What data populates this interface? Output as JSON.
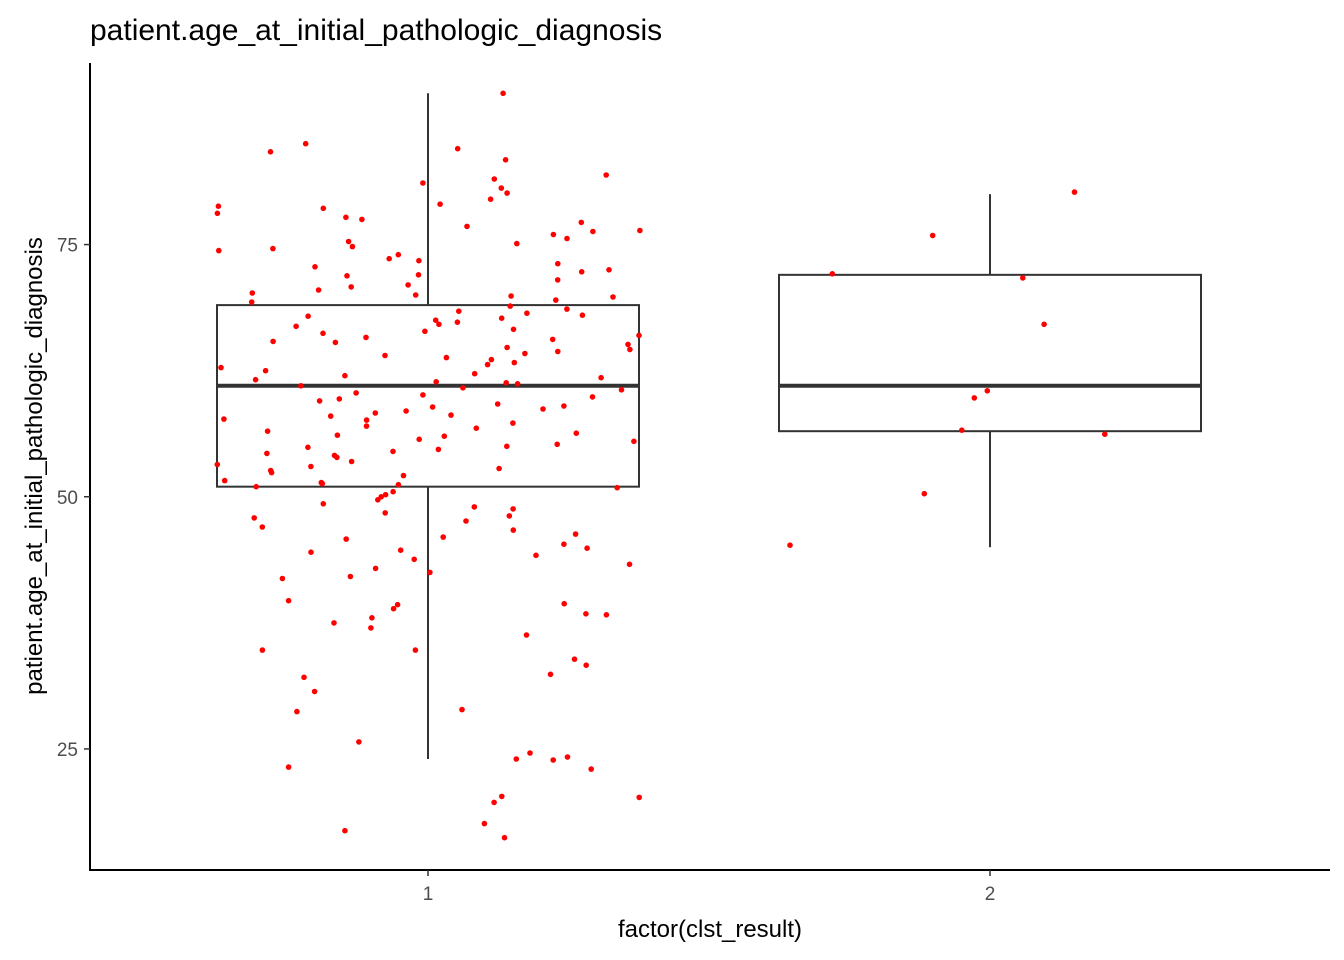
{
  "chart_data": {
    "type": "boxplot",
    "title": "patient.age_at_initial_pathologic_diagnosis",
    "xlabel": "factor(clst_result)",
    "ylabel": "patient.age_at_initial_pathologic_diagnosis",
    "categories": [
      "1",
      "2"
    ],
    "y_ticks": [
      25,
      50,
      75
    ],
    "ylim": [
      13,
      93
    ],
    "grid": false,
    "point_color": "#ff0000",
    "box_color": "#333333",
    "boxes": [
      {
        "category": "1",
        "whisker_low": 24,
        "q1": 51,
        "median": 61,
        "q3": 69,
        "whisker_high": 90
      },
      {
        "category": "2",
        "whisker_low": 45,
        "q1": 56.5,
        "median": 61,
        "q3": 72,
        "whisker_high": 80
      }
    ],
    "points": [
      {
        "category": "1",
        "values": [
          19.7,
          16.9,
          17.6,
          20.2,
          16.2,
          20.3,
          23.2,
          23.0,
          24.0,
          24.2,
          24.6,
          25.7,
          23.9,
          28.7,
          28.9,
          30.7,
          32.1,
          32.4,
          33.3,
          33.9,
          34.8,
          34.8,
          36.3,
          37.0,
          37.5,
          38.0,
          38.3,
          38.4,
          38.9,
          39.3,
          39.4,
          39.7,
          41.9,
          42.1,
          42.9,
          42.5,
          43.3,
          43.8,
          44.2,
          44.5,
          44.7,
          44.9,
          45.3,
          45.8,
          46.0,
          46.3,
          46.7,
          47.0,
          47.6,
          47.9,
          48.1,
          48.4,
          48.8,
          49.3,
          49.7,
          50.2,
          50.5,
          50.9,
          51.2,
          51.6,
          51.3,
          52.4,
          52.8,
          53.2,
          53.9,
          54.1,
          54.5,
          54.9,
          55.2,
          55.7,
          56.0,
          56.3,
          56.8,
          57.3,
          57.7,
          58.1,
          58.5,
          58.9,
          59.2,
          59.7,
          60.1,
          60.6,
          61.0,
          61.4,
          61.8,
          62.2,
          62.8,
          63.1,
          63.6,
          64.0,
          64.4,
          64.8,
          65.3,
          65.6,
          66.0,
          66.4,
          66.9,
          67.3,
          67.7,
          68.0,
          68.4,
          68.9,
          69.3,
          69.8,
          70.2,
          70.5,
          71.0,
          71.5,
          71.9,
          72.3,
          72.8,
          73.1,
          73.6,
          74.0,
          74.4,
          74.8,
          75.1,
          75.6,
          76.0,
          76.4,
          76.8,
          77.2,
          77.7,
          78.1,
          78.6,
          79.0,
          79.5,
          80.1,
          80.6,
          81.1,
          81.5,
          81.9,
          83.4,
          84.2,
          84.5,
          85.0,
          90.0,
          52.1,
          53.5,
          55.0,
          57.0,
          58.3,
          59.5,
          60.3,
          62.5,
          63.8,
          65.1,
          66.6,
          67.5,
          68.6,
          69.5,
          70.8,
          72.0,
          73.4,
          74.6,
          76.3,
          77.5,
          78.8,
          49.0,
          50.0,
          51.0,
          52.6,
          54.3,
          56.5,
          58.7,
          61.2,
          63.3,
          65.8,
          67.9,
          70.0,
          72.5,
          75.3,
          61.6,
          59.9,
          57.6,
          55.5,
          53.0,
          51.4,
          60.8,
          64.6,
          66.2,
          68.2,
          62.0,
          59.0,
          56.1,
          54.7,
          64.2,
          67.1,
          69.9,
          61.3,
          58.0,
          65.4
        ]
      },
      {
        "category": "2",
        "values": [
          56.2,
          45.2,
          72.1,
          60.5,
          59.8,
          75.9,
          80.2,
          67.1,
          71.7,
          50.3,
          56.6
        ]
      }
    ]
  }
}
